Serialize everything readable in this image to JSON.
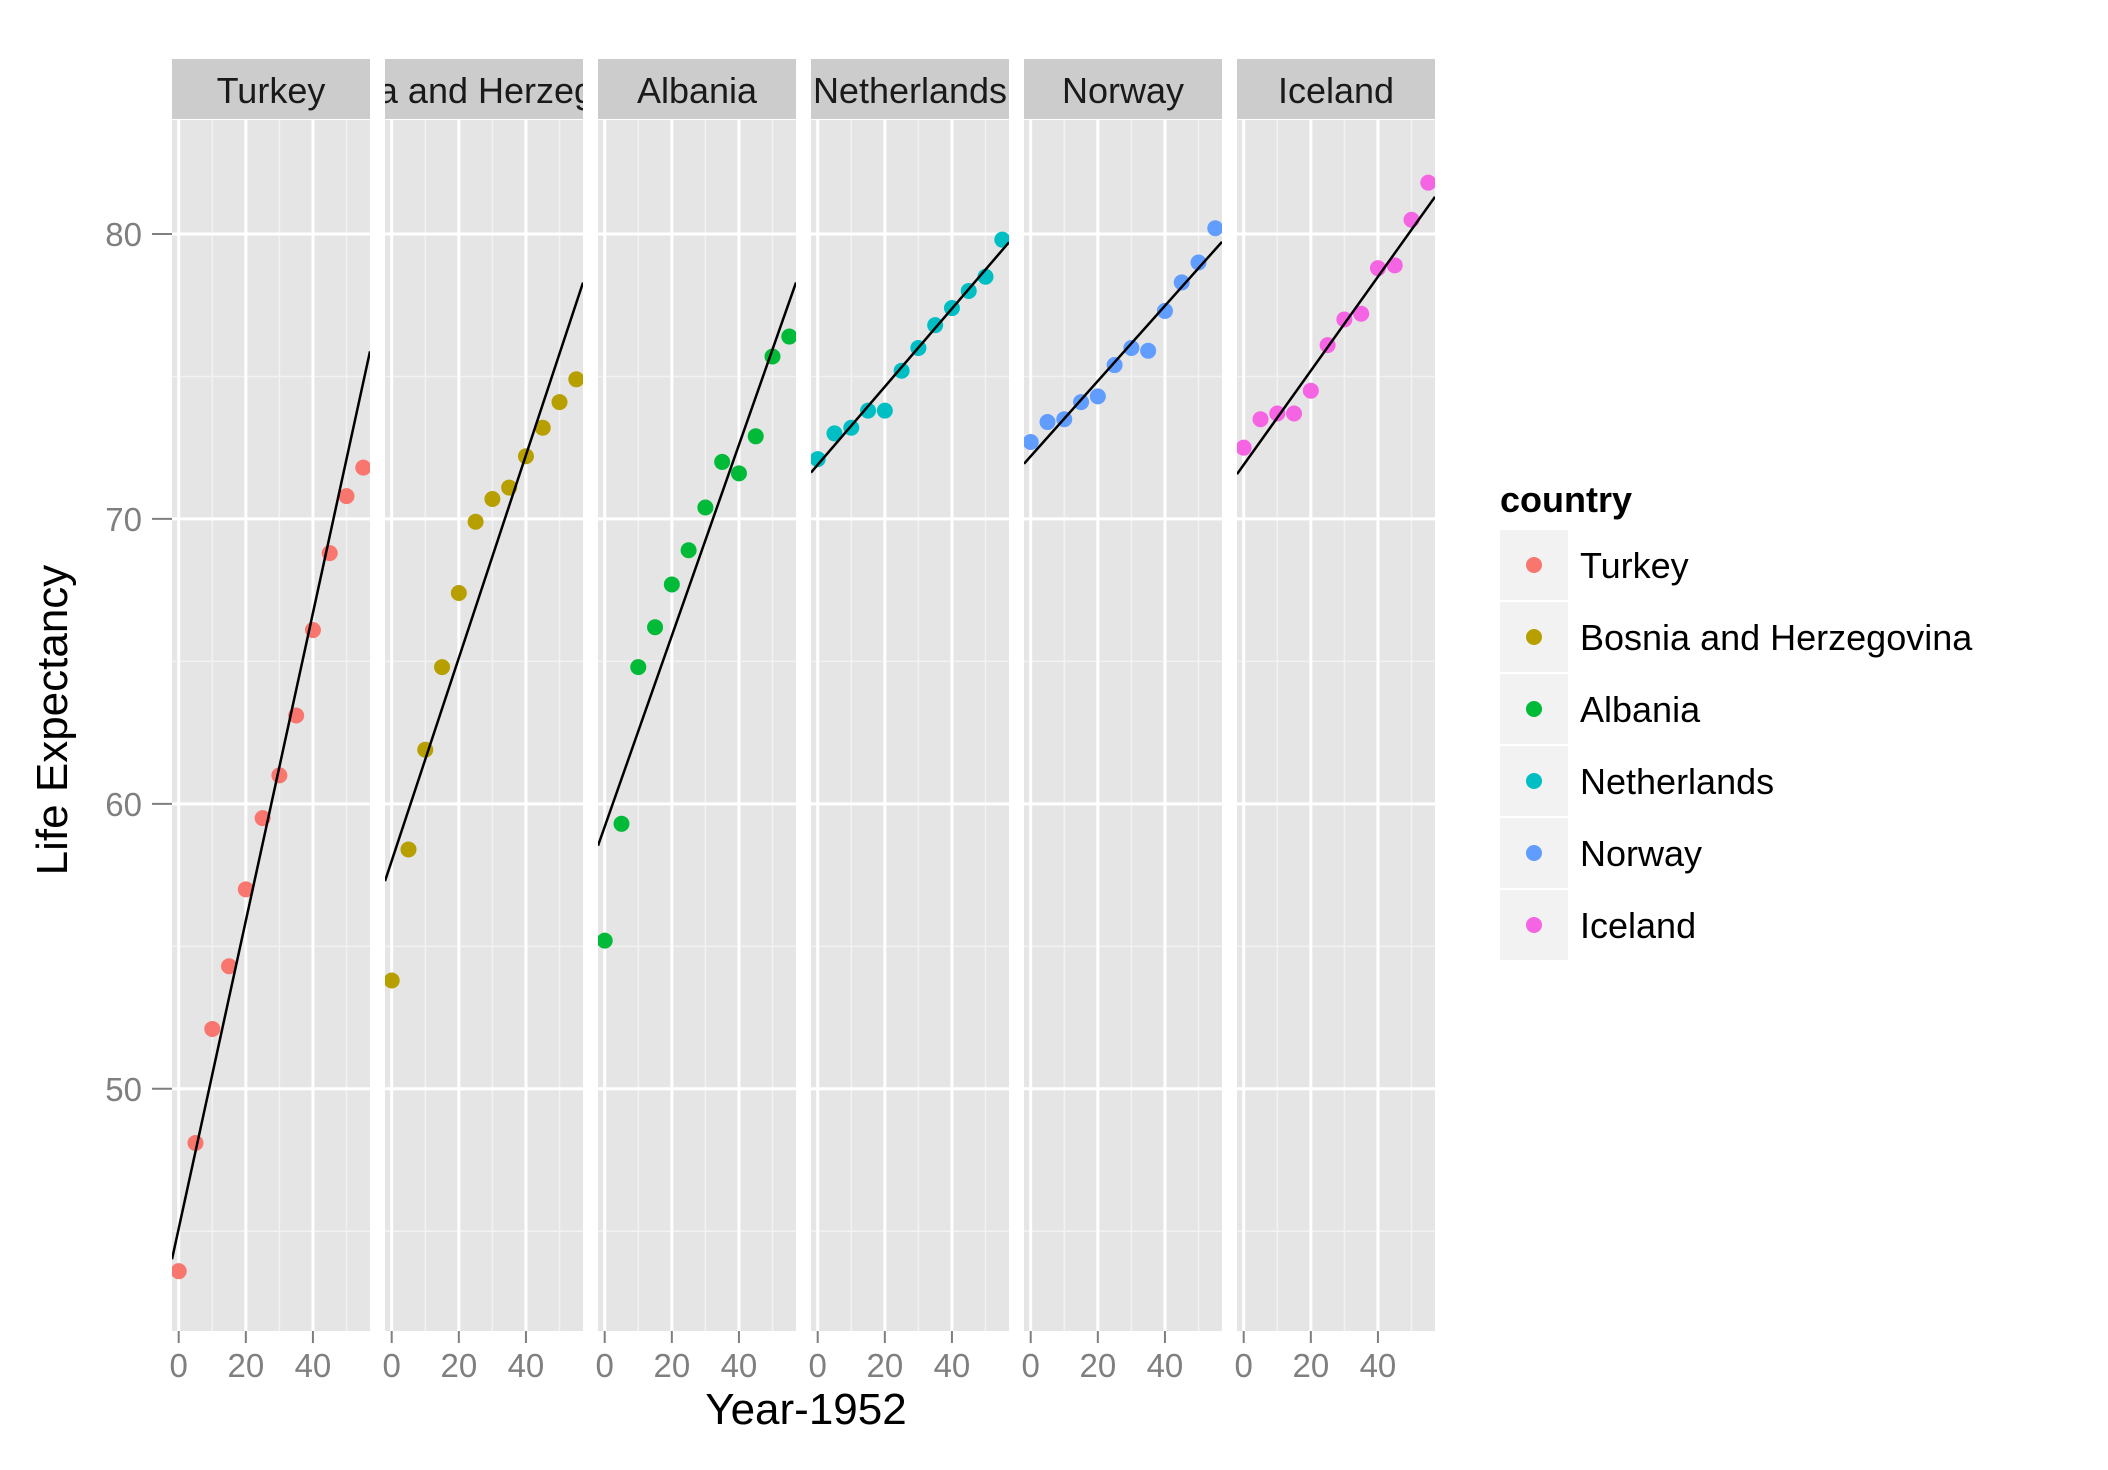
{
  "chart_data": {
    "type": "scatter",
    "layout": "faceted-small-multiples",
    "title": "",
    "xlabel": "Year-1952",
    "ylabel": "Life Expectancy",
    "xlim": [
      -2,
      57
    ],
    "ylim": [
      41.5,
      84
    ],
    "x_ticks": [
      0,
      20,
      40
    ],
    "y_ticks": [
      50,
      60,
      70,
      80
    ],
    "grid": true,
    "legend": {
      "title": "country",
      "position": "right"
    },
    "trend_line_color": "#000000",
    "facets": [
      {
        "name": "Turkey",
        "label": "Turkey",
        "color": "#F8766D",
        "x": [
          0,
          5,
          10,
          15,
          20,
          25,
          30,
          35,
          40,
          45,
          50,
          55
        ],
        "y": [
          43.6,
          48.1,
          52.1,
          54.3,
          57.0,
          59.5,
          61.0,
          63.1,
          66.1,
          68.8,
          70.8,
          71.8
        ],
        "trend": {
          "intercept": 45.1,
          "slope": 0.54
        }
      },
      {
        "name": "Bosnia and Herzegovina",
        "label": "Bosnia and Herzegovina",
        "color": "#B79F00",
        "x": [
          0,
          5,
          10,
          15,
          20,
          25,
          30,
          35,
          40,
          45,
          50,
          55
        ],
        "y": [
          53.8,
          58.4,
          61.9,
          64.8,
          67.4,
          69.9,
          70.7,
          71.1,
          72.2,
          73.2,
          74.1,
          74.9
        ],
        "trend": {
          "intercept": 58.0,
          "slope": 0.356
        }
      },
      {
        "name": "Albania",
        "label": "Albania",
        "color": "#00BA38",
        "x": [
          0,
          5,
          10,
          15,
          20,
          25,
          30,
          35,
          40,
          45,
          50,
          55
        ],
        "y": [
          55.2,
          59.3,
          64.8,
          66.2,
          67.7,
          68.9,
          70.4,
          72.0,
          71.6,
          72.9,
          75.7,
          76.4
        ],
        "trend": {
          "intercept": 59.2,
          "slope": 0.335
        }
      },
      {
        "name": "Netherlands",
        "label": "Netherlands",
        "color": "#00BFC4",
        "x": [
          0,
          5,
          10,
          15,
          20,
          25,
          30,
          35,
          40,
          45,
          50,
          55
        ],
        "y": [
          72.1,
          73.0,
          73.2,
          73.8,
          73.8,
          75.2,
          76.0,
          76.8,
          77.4,
          78.0,
          78.5,
          79.8
        ],
        "trend": {
          "intercept": 71.9,
          "slope": 0.137
        }
      },
      {
        "name": "Norway",
        "label": "Norway",
        "color": "#619CFF",
        "x": [
          0,
          5,
          10,
          15,
          20,
          25,
          30,
          35,
          40,
          45,
          50,
          55
        ],
        "y": [
          72.7,
          73.4,
          73.5,
          74.1,
          74.3,
          75.4,
          76.0,
          75.9,
          77.3,
          78.3,
          79.0,
          80.2
        ],
        "trend": {
          "intercept": 72.2,
          "slope": 0.132
        }
      },
      {
        "name": "Iceland",
        "label": "Iceland",
        "color": "#F564E3",
        "x": [
          0,
          5,
          10,
          15,
          20,
          25,
          30,
          35,
          40,
          45,
          50,
          55
        ],
        "y": [
          72.5,
          73.5,
          73.7,
          73.7,
          74.5,
          76.1,
          77.0,
          77.2,
          78.8,
          78.9,
          80.5,
          81.8
        ],
        "trend": {
          "intercept": 71.9,
          "slope": 0.165
        }
      }
    ]
  }
}
